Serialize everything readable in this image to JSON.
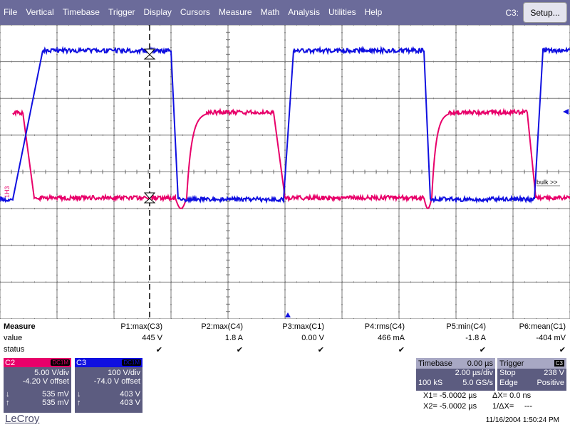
{
  "menu": {
    "items": [
      "File",
      "Vertical",
      "Timebase",
      "Trigger",
      "Display",
      "Cursors",
      "Measure",
      "Math",
      "Analysis",
      "Utilities",
      "Help"
    ],
    "channel_label": "C3:",
    "setup_label": "Setup..."
  },
  "screen": {
    "right_label": "bulk >>",
    "left_label": "1H3"
  },
  "measure": {
    "title": "Measure",
    "row_labels": [
      "value",
      "status"
    ],
    "params": [
      {
        "name": "P1:max(C3)",
        "value": "445 V"
      },
      {
        "name": "P2:max(C4)",
        "value": "1.8 A"
      },
      {
        "name": "P3:max(C1)",
        "value": "0.00 V"
      },
      {
        "name": "P4:rms(C4)",
        "value": "466 mA"
      },
      {
        "name": "P5:min(C4)",
        "value": "-1.8 A"
      },
      {
        "name": "P6:mean(C1)",
        "value": "-404 mV"
      }
    ]
  },
  "channels": [
    {
      "name": "C2",
      "tag": "DC1M",
      "vdiv": "5.00 V/div",
      "offset": "-4.20 V offset",
      "down": "535 mV",
      "up": "535 mV",
      "color": "#e8006a"
    },
    {
      "name": "C3",
      "tag": "DC1M",
      "vdiv": "100 V/div",
      "offset": "-74.0 V offset",
      "down": "403 V",
      "up": "403 V",
      "color": "#1010e0"
    }
  ],
  "timebase": {
    "label": "Timebase",
    "delay": "0.00 µs",
    "per_div": "2.00 µs/div",
    "samples": "100 kS",
    "rate": "5.0 GS/s"
  },
  "trigger": {
    "label": "Trigger",
    "ch": "C3",
    "mode": "Stop",
    "level": "238 V",
    "type": "Edge",
    "slope": "Positive"
  },
  "cursors": {
    "x1": "X1= -5.0002 µs",
    "dx": "ΔX= 0.0 ns",
    "x2": "X2= -5.0002 µs",
    "inv": "1/ΔX=",
    "inv_val": "---"
  },
  "brand": "LeCroy",
  "datetime": "11/16/2004 1:50:24 PM",
  "colors": {
    "menu_bg": "#6b6b9a",
    "blue_trace": "#1010e0",
    "pink_trace": "#e8006a",
    "panel": "#5c5c80"
  }
}
